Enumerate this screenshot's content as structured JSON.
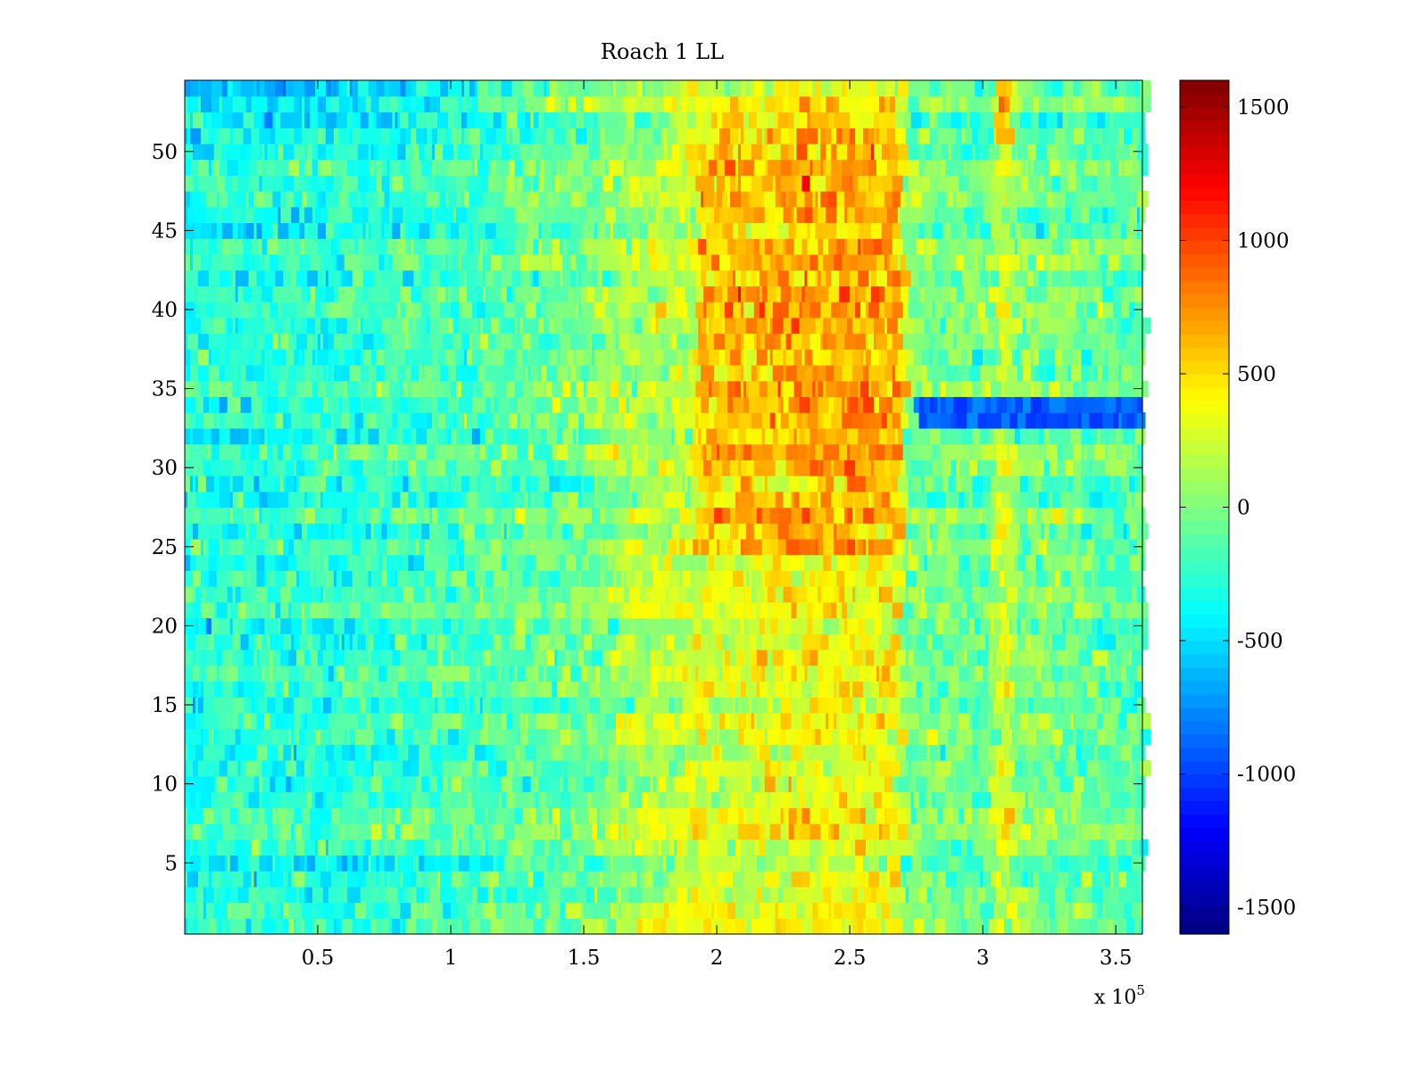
{
  "chart_data": {
    "type": "heatmap",
    "title": "Roach 1 LL",
    "xlabel": "",
    "ylabel": "",
    "x_range": [
      0,
      360000
    ],
    "y_range": [
      0.5,
      54.5
    ],
    "x_exponent_label": {
      "base": "x 10",
      "exponent": "5"
    },
    "x_ticks": [
      {
        "value": 50000,
        "label": "0.5"
      },
      {
        "value": 100000,
        "label": "1"
      },
      {
        "value": 150000,
        "label": "1.5"
      },
      {
        "value": 200000,
        "label": "2"
      },
      {
        "value": 250000,
        "label": "2.5"
      },
      {
        "value": 300000,
        "label": "3"
      },
      {
        "value": 350000,
        "label": "3.5"
      }
    ],
    "y_ticks": [
      {
        "value": 5,
        "label": "5"
      },
      {
        "value": 10,
        "label": "10"
      },
      {
        "value": 15,
        "label": "15"
      },
      {
        "value": 20,
        "label": "20"
      },
      {
        "value": 25,
        "label": "25"
      },
      {
        "value": 30,
        "label": "30"
      },
      {
        "value": 35,
        "label": "35"
      },
      {
        "value": 40,
        "label": "40"
      },
      {
        "value": 45,
        "label": "45"
      },
      {
        "value": 50,
        "label": "50"
      }
    ],
    "colorbar": {
      "colormap": "jet",
      "range": [
        -1600,
        1600
      ],
      "ticks": [
        {
          "value": 1500,
          "label": "1500"
        },
        {
          "value": 1000,
          "label": "1000"
        },
        {
          "value": 500,
          "label": "500"
        },
        {
          "value": 0,
          "label": "0"
        },
        {
          "value": -500,
          "label": "-500"
        },
        {
          "value": -1000,
          "label": "-1000"
        },
        {
          "value": -1500,
          "label": "-1500"
        }
      ]
    },
    "rows": 54,
    "column_bin_width": 1000,
    "approximate_structure": {
      "x_profile_knots": [
        [
          0,
          -300
        ],
        [
          50000,
          -280
        ],
        [
          100000,
          -180
        ],
        [
          150000,
          -60
        ],
        [
          160000,
          80
        ],
        [
          190000,
          250
        ],
        [
          230000,
          350
        ],
        [
          265000,
          350
        ],
        [
          270000,
          0
        ],
        [
          300000,
          -80
        ],
        [
          306000,
          300
        ],
        [
          312000,
          0
        ],
        [
          360000,
          -150
        ]
      ],
      "notes": "Elevated values (approx. 200-900) for rows 25-52 between x = 1.9e5 and 2.7e5; strong negative band (approx. -900) on rows 33-34 for x > 2.7e5; positive vertical streak near x = 3.07e5."
    }
  }
}
